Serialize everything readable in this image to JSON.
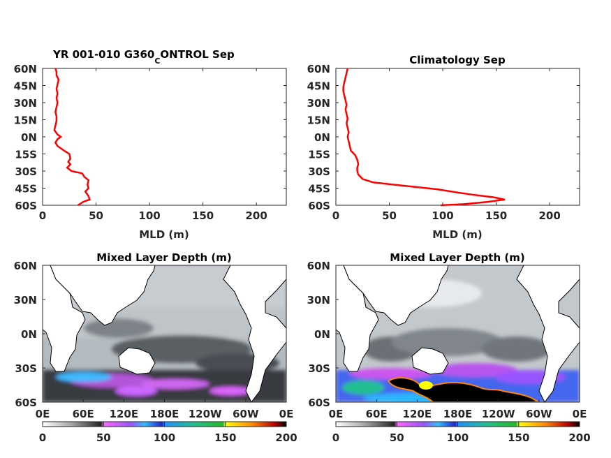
{
  "panels": {
    "top_left_title": {
      "main": "YR 001-010 G360",
      "sub": "C",
      "rest": "ONTROL Sep"
    },
    "top_right_title": "Climatology Sep",
    "bottom_left_title": "Mixed Layer Depth (m)",
    "bottom_right_title": "Mixed Layer Depth (m)"
  },
  "chart_data": [
    {
      "type": "line",
      "title": "YR 001-010 G360_CONTROL Sep",
      "xlabel": "MLD (m)",
      "ylabel": "",
      "xlim": [
        0,
        228
      ],
      "ylim": [
        -60,
        60
      ],
      "xticks": [
        0,
        50,
        100,
        150,
        200
      ],
      "yticks": [
        "60S",
        "45S",
        "30S",
        "15S",
        "0N",
        "15N",
        "30N",
        "45N",
        "60N"
      ],
      "line_color": "#ff0000",
      "series": [
        {
          "x": [
            33,
            38,
            44,
            43,
            40,
            43,
            42,
            43,
            39,
            37,
            27,
            23,
            26,
            24,
            26,
            25,
            20,
            14,
            12,
            14,
            17,
            14,
            11,
            12,
            13,
            13,
            12,
            13,
            14,
            13,
            14,
            13,
            14,
            15,
            13,
            13,
            12
          ],
          "y": [
            -60,
            -57,
            -55,
            -52,
            -48,
            -45,
            -42,
            -38,
            -35,
            -32,
            -30,
            -27,
            -24,
            -22,
            -19,
            -15,
            -12,
            -8,
            -5,
            -2,
            0,
            2,
            6,
            10,
            14,
            18,
            22,
            26,
            30,
            34,
            38,
            42,
            46,
            50,
            54,
            57,
            60
          ]
        }
      ]
    },
    {
      "type": "line",
      "title": "Climatology Sep",
      "xlabel": "MLD (m)",
      "ylabel": "",
      "xlim": [
        0,
        228
      ],
      "ylim": [
        -60,
        60
      ],
      "xticks": [
        0,
        50,
        100,
        150,
        200
      ],
      "yticks": [
        "60S",
        "45S",
        "30S",
        "15S",
        "0N",
        "15N",
        "30N",
        "45N",
        "60N"
      ],
      "line_color": "#ff0000",
      "series": [
        {
          "x": [
            98,
            120,
            142,
            158,
            148,
            130,
            115,
            95,
            75,
            55,
            35,
            25,
            21,
            20,
            20,
            21,
            20,
            18,
            14,
            13,
            12,
            11,
            12,
            11,
            10,
            11,
            10,
            9,
            10,
            9,
            8,
            7,
            7,
            8,
            9,
            10,
            11
          ],
          "y": [
            -60,
            -59,
            -57,
            -55,
            -53,
            -51,
            -49,
            -46,
            -44,
            -42,
            -40,
            -37,
            -33,
            -30,
            -27,
            -24,
            -20,
            -16,
            -12,
            -8,
            -4,
            0,
            4,
            8,
            12,
            16,
            20,
            24,
            28,
            32,
            36,
            40,
            44,
            48,
            52,
            56,
            60
          ]
        }
      ]
    },
    {
      "type": "heatmap",
      "title": "Mixed Layer Depth (m)",
      "xlabel": "",
      "ylabel": "",
      "xlim": [
        0,
        360
      ],
      "ylim": [
        -60,
        60
      ],
      "xticks": [
        "0E",
        "60E",
        "120E",
        "180E",
        "120W",
        "60W",
        "0E"
      ],
      "yticks": [
        "60S",
        "30S",
        "0N",
        "30N",
        "60N"
      ],
      "colorbar": {
        "ticks": [
          "0",
          "50",
          "100",
          "150",
          "200"
        ],
        "range": [
          0,
          200
        ]
      },
      "zonal_mean_profile": "model"
    },
    {
      "type": "heatmap",
      "title": "Mixed Layer Depth (m)",
      "xlabel": "",
      "ylabel": "",
      "xlim": [
        0,
        360
      ],
      "ylim": [
        -60,
        60
      ],
      "xticks": [
        "0E",
        "60E",
        "120E",
        "180E",
        "120W",
        "60W",
        "0E"
      ],
      "yticks": [
        "60S",
        "30S",
        "0N",
        "30N",
        "60N"
      ],
      "colorbar": {
        "ticks": [
          "0",
          "50",
          "100",
          "150",
          "200"
        ],
        "range": [
          0,
          200
        ]
      },
      "zonal_mean_profile": "climatology"
    }
  ]
}
